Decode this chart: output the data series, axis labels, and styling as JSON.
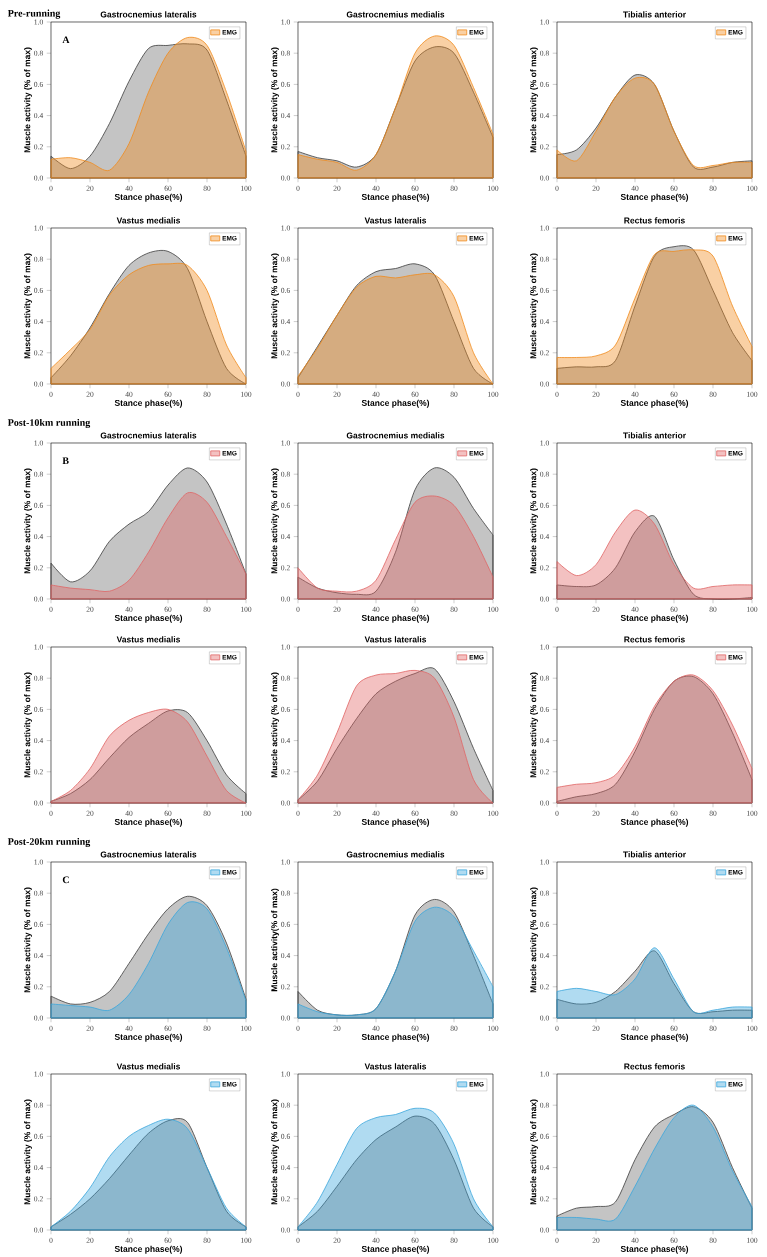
{
  "chart_data": [
    {
      "type": "area",
      "subtitle": "Pre-running",
      "title": "Gastrocnemius  lateralis",
      "xlabel": "Stance phase(%)",
      "ylabel": "Muscle activity (% of max)",
      "annotations": [
        "A"
      ],
      "x": [
        0,
        10,
        20,
        30,
        40,
        50,
        60,
        70,
        80,
        90,
        100
      ],
      "xlim": [
        0,
        100
      ],
      "ylim": [
        0,
        1
      ],
      "xticks": [
        0,
        20,
        40,
        60,
        80,
        100
      ],
      "yticks": [
        {
          "value": 0,
          "label": "0.0"
        },
        {
          "value": 0.2,
          "label": "0.2"
        },
        {
          "value": 0.4,
          "label": "0.4"
        },
        {
          "value": 0.6,
          "label": "0.6"
        },
        {
          "value": 0.8,
          "label": "0.8"
        },
        {
          "value": 1,
          "label": "1.0"
        }
      ],
      "legend": "top right",
      "series": [
        {
          "color": "#3c3c3c",
          "values": [
            0.14,
            0.06,
            0.14,
            0.35,
            0.62,
            0.83,
            0.85,
            0.86,
            0.82,
            0.5,
            0.14
          ]
        },
        {
          "name": "EMG",
          "color": "#f08a1c",
          "values": [
            0.12,
            0.13,
            0.1,
            0.05,
            0.22,
            0.55,
            0.8,
            0.9,
            0.85,
            0.55,
            0.17
          ]
        }
      ]
    },
    {
      "type": "area",
      "title": "Gastrocnemius medialis",
      "xlabel": "Stance phase(%)",
      "ylabel": "Muscle activity (% of max)",
      "x": [
        0,
        10,
        20,
        30,
        40,
        50,
        60,
        70,
        80,
        90,
        100
      ],
      "xlim": [
        0,
        100
      ],
      "ylim": [
        0,
        1
      ],
      "xticks": [
        0,
        20,
        40,
        60,
        80,
        100
      ],
      "yticks": [
        {
          "value": 0,
          "label": "0.0"
        },
        {
          "value": 0.2,
          "label": "0.2"
        },
        {
          "value": 0.4,
          "label": "0.4"
        },
        {
          "value": 0.6,
          "label": "0.6"
        },
        {
          "value": 0.8,
          "label": "0.8"
        },
        {
          "value": 1,
          "label": "1.0"
        }
      ],
      "legend": "top right",
      "series": [
        {
          "color": "#3c3c3c",
          "values": [
            0.17,
            0.13,
            0.11,
            0.07,
            0.15,
            0.45,
            0.75,
            0.84,
            0.8,
            0.55,
            0.26
          ]
        },
        {
          "name": "EMG",
          "color": "#f08a1c",
          "values": [
            0.15,
            0.12,
            0.1,
            0.05,
            0.15,
            0.45,
            0.8,
            0.91,
            0.85,
            0.58,
            0.28
          ]
        }
      ]
    },
    {
      "type": "area",
      "title": "Tibialis anterior",
      "xlabel": "Stance phase(%)",
      "ylabel": "Muscle activity (% of max)",
      "x": [
        0,
        10,
        20,
        30,
        40,
        50,
        60,
        70,
        80,
        90,
        100
      ],
      "xlim": [
        0,
        100
      ],
      "ylim": [
        0,
        1
      ],
      "xticks": [
        0,
        20,
        40,
        60,
        80,
        100
      ],
      "yticks": [
        {
          "value": 0,
          "label": "0.0"
        },
        {
          "value": 0.2,
          "label": "0.2"
        },
        {
          "value": 0.4,
          "label": "0.4"
        },
        {
          "value": 0.6,
          "label": "0.6"
        },
        {
          "value": 0.8,
          "label": "0.8"
        },
        {
          "value": 1,
          "label": "1.0"
        }
      ],
      "legend": "top right",
      "series": [
        {
          "color": "#3c3c3c",
          "values": [
            0.15,
            0.18,
            0.32,
            0.52,
            0.66,
            0.6,
            0.3,
            0.07,
            0.07,
            0.1,
            0.11
          ]
        },
        {
          "name": "EMG",
          "color": "#f08a1c",
          "values": [
            0.18,
            0.11,
            0.3,
            0.52,
            0.64,
            0.6,
            0.3,
            0.08,
            0.08,
            0.1,
            0.1
          ]
        }
      ]
    },
    {
      "type": "area",
      "title": "Vastus medialis",
      "xlabel": "Stance phase(%)",
      "ylabel": "Muscle activity (% of max)",
      "x": [
        0,
        10,
        20,
        30,
        40,
        50,
        60,
        70,
        80,
        90,
        100
      ],
      "xlim": [
        0,
        100
      ],
      "ylim": [
        0,
        1
      ],
      "xticks": [
        0,
        20,
        40,
        60,
        80,
        100
      ],
      "yticks": [
        {
          "value": 0,
          "label": "0.0"
        },
        {
          "value": 0.2,
          "label": "0.2"
        },
        {
          "value": 0.4,
          "label": "0.4"
        },
        {
          "value": 0.6,
          "label": "0.6"
        },
        {
          "value": 0.8,
          "label": "0.8"
        },
        {
          "value": 1,
          "label": "1.0"
        }
      ],
      "legend": "top right",
      "series": [
        {
          "color": "#3c3c3c",
          "values": [
            0.04,
            0.18,
            0.36,
            0.58,
            0.76,
            0.84,
            0.85,
            0.74,
            0.4,
            0.1,
            0.0
          ]
        },
        {
          "name": "EMG",
          "color": "#f08a1c",
          "values": [
            0.1,
            0.22,
            0.35,
            0.57,
            0.7,
            0.76,
            0.77,
            0.76,
            0.6,
            0.25,
            0.04
          ]
        }
      ]
    },
    {
      "type": "area",
      "title": "Vastus  lateralis",
      "xlabel": "Stance phase(%)",
      "ylabel": "Muscle activity (% of max)",
      "x": [
        0,
        10,
        20,
        30,
        40,
        50,
        60,
        70,
        80,
        90,
        100
      ],
      "xlim": [
        0,
        100
      ],
      "ylim": [
        0,
        1
      ],
      "xticks": [
        0,
        20,
        40,
        60,
        80,
        100
      ],
      "yticks": [
        {
          "value": 0,
          "label": "0.0"
        },
        {
          "value": 0.2,
          "label": "0.2"
        },
        {
          "value": 0.4,
          "label": "0.4"
        },
        {
          "value": 0.6,
          "label": "0.6"
        },
        {
          "value": 0.8,
          "label": "0.8"
        },
        {
          "value": 1,
          "label": "1.0"
        }
      ],
      "legend": "top right",
      "series": [
        {
          "color": "#3c3c3c",
          "values": [
            0.04,
            0.24,
            0.44,
            0.63,
            0.72,
            0.74,
            0.77,
            0.7,
            0.4,
            0.1,
            0.0
          ]
        },
        {
          "name": "EMG",
          "color": "#f08a1c",
          "values": [
            0.05,
            0.23,
            0.44,
            0.62,
            0.69,
            0.68,
            0.7,
            0.7,
            0.56,
            0.2,
            0.0
          ]
        }
      ]
    },
    {
      "type": "area",
      "title": "Rectus femoris",
      "xlabel": "Stance phase(%)",
      "ylabel": "Muscle activity (% of max)",
      "x": [
        0,
        10,
        20,
        30,
        40,
        50,
        60,
        70,
        80,
        90,
        100
      ],
      "xlim": [
        0,
        100
      ],
      "ylim": [
        0,
        1
      ],
      "xticks": [
        0,
        20,
        40,
        60,
        80,
        100
      ],
      "yticks": [
        {
          "value": 0,
          "label": "0.0"
        },
        {
          "value": 0.2,
          "label": "0.2"
        },
        {
          "value": 0.4,
          "label": "0.4"
        },
        {
          "value": 0.6,
          "label": "0.6"
        },
        {
          "value": 0.8,
          "label": "0.8"
        },
        {
          "value": 1,
          "label": "1.0"
        }
      ],
      "legend": "top right",
      "series": [
        {
          "color": "#3c3c3c",
          "values": [
            0.1,
            0.11,
            0.11,
            0.15,
            0.5,
            0.82,
            0.88,
            0.86,
            0.6,
            0.33,
            0.15
          ]
        },
        {
          "name": "EMG",
          "color": "#f08a1c",
          "values": [
            0.17,
            0.17,
            0.18,
            0.25,
            0.55,
            0.83,
            0.85,
            0.86,
            0.82,
            0.5,
            0.24
          ]
        }
      ]
    },
    {
      "type": "area",
      "subtitle": "Post-10km running",
      "title": "Gastrocnemius  lateralis",
      "xlabel": "Stance phase(%)",
      "ylabel": "Muscle activity (% of max)",
      "annotations": [
        "B"
      ],
      "x": [
        0,
        10,
        20,
        30,
        40,
        50,
        60,
        70,
        80,
        90,
        100
      ],
      "xlim": [
        0,
        100
      ],
      "ylim": [
        0,
        1
      ],
      "xticks": [
        0,
        20,
        40,
        60,
        80,
        100
      ],
      "yticks": [
        {
          "value": 0,
          "label": "0.0"
        },
        {
          "value": 0.2,
          "label": "0.2"
        },
        {
          "value": 0.4,
          "label": "0.4"
        },
        {
          "value": 0.6,
          "label": "0.6"
        },
        {
          "value": 0.8,
          "label": "0.8"
        },
        {
          "value": 1,
          "label": "1.0"
        }
      ],
      "legend": "top right",
      "series": [
        {
          "color": "#3c3c3c",
          "values": [
            0.23,
            0.11,
            0.18,
            0.37,
            0.48,
            0.56,
            0.73,
            0.84,
            0.75,
            0.48,
            0.16
          ]
        },
        {
          "name": "EMG",
          "color": "#e06464",
          "values": [
            0.09,
            0.07,
            0.06,
            0.05,
            0.12,
            0.3,
            0.52,
            0.68,
            0.62,
            0.4,
            0.16
          ]
        }
      ]
    },
    {
      "type": "area",
      "title": "Gastrocnemius medialis",
      "xlabel": "Stance phase(%)",
      "ylabel": "Muscle activity (% of max)",
      "x": [
        0,
        10,
        20,
        30,
        40,
        50,
        60,
        70,
        80,
        90,
        100
      ],
      "xlim": [
        0,
        100
      ],
      "ylim": [
        0,
        1
      ],
      "xticks": [
        0,
        20,
        40,
        60,
        80,
        100
      ],
      "yticks": [
        {
          "value": 0,
          "label": "0.0"
        },
        {
          "value": 0.2,
          "label": "0.2"
        },
        {
          "value": 0.4,
          "label": "0.4"
        },
        {
          "value": 0.6,
          "label": "0.6"
        },
        {
          "value": 0.8,
          "label": "0.8"
        },
        {
          "value": 1,
          "label": "1.0"
        }
      ],
      "legend": "top right",
      "series": [
        {
          "color": "#3c3c3c",
          "values": [
            0.14,
            0.07,
            0.04,
            0.03,
            0.05,
            0.3,
            0.7,
            0.84,
            0.78,
            0.58,
            0.41
          ]
        },
        {
          "name": "EMG",
          "color": "#e06464",
          "values": [
            0.2,
            0.07,
            0.05,
            0.05,
            0.12,
            0.38,
            0.62,
            0.66,
            0.6,
            0.4,
            0.14
          ]
        }
      ]
    },
    {
      "type": "area",
      "title": "Tibialis anterior",
      "xlabel": "Stance phase(%)",
      "ylabel": "Muscle activity (% of max)",
      "x": [
        0,
        10,
        20,
        30,
        40,
        50,
        60,
        70,
        80,
        90,
        100
      ],
      "xlim": [
        0,
        100
      ],
      "ylim": [
        0,
        1
      ],
      "xticks": [
        0,
        20,
        40,
        60,
        80,
        100
      ],
      "yticks": [
        {
          "value": 0,
          "label": "0.0"
        },
        {
          "value": 0.2,
          "label": "0.2"
        },
        {
          "value": 0.4,
          "label": "0.4"
        },
        {
          "value": 0.6,
          "label": "0.6"
        },
        {
          "value": 0.8,
          "label": "0.8"
        },
        {
          "value": 1,
          "label": "1.0"
        }
      ],
      "legend": "top right",
      "series": [
        {
          "color": "#3c3c3c",
          "values": [
            0.09,
            0.08,
            0.09,
            0.2,
            0.43,
            0.53,
            0.25,
            0.03,
            0.0,
            0.0,
            0.01
          ]
        },
        {
          "name": "EMG",
          "color": "#e06464",
          "values": [
            0.24,
            0.15,
            0.22,
            0.43,
            0.57,
            0.48,
            0.22,
            0.07,
            0.08,
            0.09,
            0.09
          ]
        }
      ]
    },
    {
      "type": "area",
      "title": "Vastus medialis",
      "xlabel": "Stance phase(%)",
      "ylabel": "Muscle activity (% of max)",
      "x": [
        0,
        10,
        20,
        30,
        40,
        50,
        60,
        70,
        80,
        90,
        100
      ],
      "xlim": [
        0,
        100
      ],
      "ylim": [
        0,
        1
      ],
      "xticks": [
        0,
        20,
        40,
        60,
        80,
        100
      ],
      "yticks": [
        {
          "value": 0,
          "label": "0.0"
        },
        {
          "value": 0.2,
          "label": "0.2"
        },
        {
          "value": 0.4,
          "label": "0.4"
        },
        {
          "value": 0.6,
          "label": "0.6"
        },
        {
          "value": 0.8,
          "label": "0.8"
        },
        {
          "value": 1,
          "label": "1.0"
        }
      ],
      "legend": "top right",
      "series": [
        {
          "color": "#3c3c3c",
          "values": [
            0.01,
            0.06,
            0.15,
            0.29,
            0.42,
            0.51,
            0.59,
            0.58,
            0.4,
            0.18,
            0.06
          ]
        },
        {
          "name": "EMG",
          "color": "#e06464",
          "values": [
            0.01,
            0.08,
            0.22,
            0.43,
            0.53,
            0.58,
            0.6,
            0.52,
            0.3,
            0.08,
            0.0
          ]
        }
      ]
    },
    {
      "type": "area",
      "title": "Vastus  lateralis",
      "xlabel": "Stance phase(%)",
      "ylabel": "Muscle activity (% of max)",
      "x": [
        0,
        10,
        20,
        30,
        40,
        50,
        60,
        70,
        80,
        90,
        100
      ],
      "xlim": [
        0,
        100
      ],
      "ylim": [
        0,
        1
      ],
      "xticks": [
        0,
        20,
        40,
        60,
        80,
        100
      ],
      "yticks": [
        {
          "value": 0,
          "label": "0.0"
        },
        {
          "value": 0.2,
          "label": "0.2"
        },
        {
          "value": 0.4,
          "label": "0.4"
        },
        {
          "value": 0.6,
          "label": "0.6"
        },
        {
          "value": 0.8,
          "label": "0.8"
        },
        {
          "value": 1,
          "label": "1.0"
        }
      ],
      "legend": "top right",
      "series": [
        {
          "color": "#3c3c3c",
          "values": [
            0.02,
            0.14,
            0.35,
            0.54,
            0.7,
            0.78,
            0.83,
            0.86,
            0.65,
            0.35,
            0.08
          ]
        },
        {
          "name": "EMG",
          "color": "#e06464",
          "values": [
            0.02,
            0.18,
            0.45,
            0.75,
            0.82,
            0.83,
            0.85,
            0.8,
            0.55,
            0.15,
            0.0
          ]
        }
      ]
    },
    {
      "type": "area",
      "title": "Rectus femoris",
      "xlabel": "Stance phase(%)",
      "ylabel": "Muscle activity (% of max)",
      "x": [
        0,
        10,
        20,
        30,
        40,
        50,
        60,
        70,
        80,
        90,
        100
      ],
      "xlim": [
        0,
        100
      ],
      "ylim": [
        0,
        1
      ],
      "xticks": [
        0,
        20,
        40,
        60,
        80,
        100
      ],
      "yticks": [
        {
          "value": 0,
          "label": "0.0"
        },
        {
          "value": 0.2,
          "label": "0.2"
        },
        {
          "value": 0.4,
          "label": "0.4"
        },
        {
          "value": 0.6,
          "label": "0.6"
        },
        {
          "value": 0.8,
          "label": "0.8"
        },
        {
          "value": 1,
          "label": "1.0"
        }
      ],
      "legend": "top right",
      "series": [
        {
          "color": "#3c3c3c",
          "values": [
            0.01,
            0.04,
            0.06,
            0.12,
            0.33,
            0.6,
            0.78,
            0.81,
            0.7,
            0.45,
            0.15
          ]
        },
        {
          "name": "EMG",
          "color": "#e06464",
          "values": [
            0.1,
            0.12,
            0.13,
            0.18,
            0.36,
            0.62,
            0.78,
            0.82,
            0.72,
            0.5,
            0.22
          ]
        }
      ]
    },
    {
      "type": "area",
      "subtitle": "Post-20km running",
      "title": "Gastrocnemius  lateralis",
      "xlabel": "Stance phase(%)",
      "ylabel": "Muscle activity (% of max)",
      "annotations": [
        "C"
      ],
      "x": [
        0,
        10,
        20,
        30,
        40,
        50,
        60,
        70,
        80,
        90,
        100
      ],
      "xlim": [
        0,
        100
      ],
      "ylim": [
        0,
        1
      ],
      "xticks": [
        0,
        20,
        40,
        60,
        80,
        100
      ],
      "yticks": [
        {
          "value": 0,
          "label": "0.0"
        },
        {
          "value": 0.2,
          "label": "0.2"
        },
        {
          "value": 0.4,
          "label": "0.4"
        },
        {
          "value": 0.6,
          "label": "0.6"
        },
        {
          "value": 0.8,
          "label": "0.8"
        },
        {
          "value": 1,
          "label": "1.0"
        }
      ],
      "legend": "top right",
      "series": [
        {
          "color": "#3c3c3c",
          "values": [
            0.14,
            0.09,
            0.1,
            0.17,
            0.35,
            0.54,
            0.7,
            0.78,
            0.72,
            0.48,
            0.12
          ]
        },
        {
          "name": "EMG",
          "color": "#3aa6dc",
          "values": [
            0.09,
            0.08,
            0.07,
            0.05,
            0.15,
            0.35,
            0.6,
            0.74,
            0.7,
            0.45,
            0.11
          ]
        }
      ]
    },
    {
      "type": "area",
      "title": "Gastrocnemius medialis",
      "xlabel": "Stance phase(%)",
      "ylabel": "Muscle activity(% of max)",
      "x": [
        0,
        10,
        20,
        30,
        40,
        50,
        60,
        70,
        80,
        90,
        100
      ],
      "xlim": [
        0,
        100
      ],
      "ylim": [
        0,
        1
      ],
      "xticks": [
        0,
        20,
        40,
        60,
        80,
        100
      ],
      "yticks": [
        {
          "value": 0,
          "label": "0.0"
        },
        {
          "value": 0.2,
          "label": "0.2"
        },
        {
          "value": 0.4,
          "label": "0.4"
        },
        {
          "value": 0.6,
          "label": "0.6"
        },
        {
          "value": 0.8,
          "label": "0.8"
        },
        {
          "value": 1,
          "label": "1.0"
        }
      ],
      "legend": "top right",
      "series": [
        {
          "color": "#3c3c3c",
          "values": [
            0.17,
            0.05,
            0.02,
            0.02,
            0.06,
            0.3,
            0.66,
            0.76,
            0.68,
            0.4,
            0.09
          ]
        },
        {
          "name": "EMG",
          "color": "#3aa6dc",
          "values": [
            0.09,
            0.04,
            0.02,
            0.02,
            0.06,
            0.3,
            0.62,
            0.71,
            0.65,
            0.43,
            0.2
          ]
        }
      ]
    },
    {
      "type": "area",
      "title": "Tibialis anterior",
      "xlabel": "Stance phase(%)",
      "ylabel": "Muscle activity (% of max)",
      "x": [
        0,
        10,
        20,
        30,
        40,
        50,
        60,
        70,
        80,
        90,
        100
      ],
      "xlim": [
        0,
        100
      ],
      "ylim": [
        0,
        1
      ],
      "xticks": [
        0,
        20,
        40,
        60,
        80,
        100
      ],
      "yticks": [
        {
          "value": 0,
          "label": "0.0"
        },
        {
          "value": 0.2,
          "label": "0.2"
        },
        {
          "value": 0.4,
          "label": "0.4"
        },
        {
          "value": 0.6,
          "label": "0.6"
        },
        {
          "value": 0.8,
          "label": "0.8"
        },
        {
          "value": 1,
          "label": "1.0"
        }
      ],
      "legend": "top right",
      "series": [
        {
          "color": "#3c3c3c",
          "values": [
            0.12,
            0.09,
            0.1,
            0.17,
            0.3,
            0.43,
            0.22,
            0.04,
            0.04,
            0.05,
            0.05
          ]
        },
        {
          "name": "EMG",
          "color": "#3aa6dc",
          "values": [
            0.17,
            0.19,
            0.17,
            0.15,
            0.25,
            0.45,
            0.25,
            0.04,
            0.05,
            0.07,
            0.07
          ]
        }
      ]
    },
    {
      "type": "area",
      "title": "Vastus medialis",
      "xlabel": "Stance phase(%)",
      "ylabel": "Muscle activity (% of max)",
      "x": [
        0,
        10,
        20,
        30,
        40,
        50,
        60,
        70,
        80,
        90,
        100
      ],
      "xlim": [
        0,
        100
      ],
      "ylim": [
        0,
        1
      ],
      "xticks": [
        0,
        20,
        40,
        60,
        80,
        100
      ],
      "yticks": [
        {
          "value": 0,
          "label": "0.0"
        },
        {
          "value": 0.2,
          "label": "0.2"
        },
        {
          "value": 0.4,
          "label": "0.4"
        },
        {
          "value": 0.6,
          "label": "0.6"
        },
        {
          "value": 0.8,
          "label": "0.8"
        },
        {
          "value": 1,
          "label": "1.0"
        }
      ],
      "legend": "top right",
      "series": [
        {
          "color": "#3c3c3c",
          "values": [
            0.02,
            0.1,
            0.2,
            0.33,
            0.48,
            0.62,
            0.7,
            0.69,
            0.4,
            0.12,
            0.02
          ]
        },
        {
          "name": "EMG",
          "color": "#3aa6dc",
          "values": [
            0.02,
            0.12,
            0.27,
            0.47,
            0.6,
            0.67,
            0.71,
            0.65,
            0.4,
            0.14,
            0.02
          ]
        }
      ]
    },
    {
      "type": "area",
      "title": "Vastus  lateralis",
      "xlabel": "Stance phase(%)",
      "ylabel": "Muscle activity (% of max)",
      "x": [
        0,
        10,
        20,
        30,
        40,
        50,
        60,
        70,
        80,
        90,
        100
      ],
      "xlim": [
        0,
        100
      ],
      "ylim": [
        0,
        1
      ],
      "xticks": [
        0,
        20,
        40,
        60,
        80,
        100
      ],
      "yticks": [
        {
          "value": 0,
          "label": "0.0"
        },
        {
          "value": 0.2,
          "label": "0.2"
        },
        {
          "value": 0.4,
          "label": "0.4"
        },
        {
          "value": 0.6,
          "label": "0.6"
        },
        {
          "value": 0.8,
          "label": "0.8"
        },
        {
          "value": 1,
          "label": "1.0"
        }
      ],
      "legend": "top right",
      "series": [
        {
          "color": "#3c3c3c",
          "values": [
            0.02,
            0.12,
            0.28,
            0.45,
            0.58,
            0.66,
            0.73,
            0.68,
            0.45,
            0.14,
            0.02
          ]
        },
        {
          "name": "EMG",
          "color": "#3aa6dc",
          "values": [
            0.02,
            0.18,
            0.42,
            0.65,
            0.72,
            0.74,
            0.78,
            0.75,
            0.55,
            0.2,
            0.02
          ]
        }
      ]
    },
    {
      "type": "area",
      "title": "Rectus femoris",
      "xlabel": "Stance phase(%)",
      "ylabel": "Muscle activity (% of max)",
      "x": [
        0,
        10,
        20,
        30,
        40,
        50,
        60,
        70,
        80,
        90,
        100
      ],
      "xlim": [
        0,
        100
      ],
      "ylim": [
        0,
        1
      ],
      "xticks": [
        0,
        20,
        40,
        60,
        80,
        100
      ],
      "yticks": [
        {
          "value": 0,
          "label": "0.0"
        },
        {
          "value": 0.2,
          "label": "0.2"
        },
        {
          "value": 0.4,
          "label": "0.4"
        },
        {
          "value": 0.6,
          "label": "0.6"
        },
        {
          "value": 0.8,
          "label": "0.8"
        },
        {
          "value": 1,
          "label": "1.0"
        }
      ],
      "legend": "top right",
      "series": [
        {
          "color": "#3c3c3c",
          "values": [
            0.09,
            0.14,
            0.15,
            0.18,
            0.45,
            0.66,
            0.74,
            0.79,
            0.69,
            0.4,
            0.14
          ]
        },
        {
          "name": "EMG",
          "color": "#3aa6dc",
          "values": [
            0.08,
            0.08,
            0.07,
            0.07,
            0.28,
            0.52,
            0.72,
            0.8,
            0.66,
            0.38,
            0.15
          ]
        }
      ]
    }
  ]
}
